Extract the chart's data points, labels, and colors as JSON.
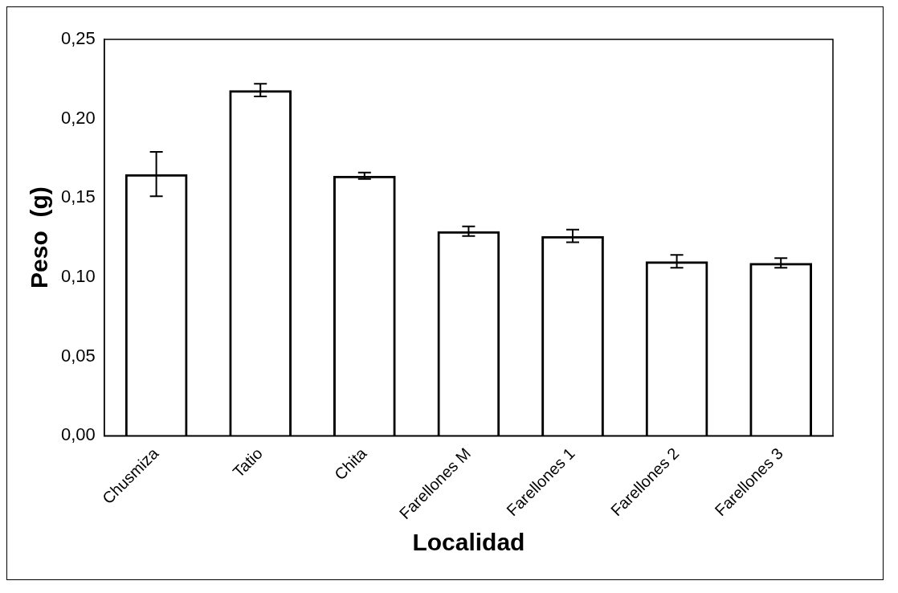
{
  "chart_data": {
    "type": "bar",
    "xlabel": "Localidad",
    "ylabel": "Peso  (g)",
    "categories": [
      "Chusmiza",
      "Tatio",
      "Chita",
      "Farellones M",
      "Farellones 1",
      "Farellones 2",
      "Farellones 3"
    ],
    "values": [
      0.165,
      0.218,
      0.164,
      0.129,
      0.126,
      0.11,
      0.109
    ],
    "errors": [
      0.014,
      0.004,
      0.002,
      0.003,
      0.004,
      0.004,
      0.003
    ],
    "color": "#000000",
    "ylim": [
      0,
      0.25
    ],
    "yticks": [
      {
        "value": 0,
        "label": "0,00"
      },
      {
        "value": 0.05,
        "label": "0,05"
      },
      {
        "value": 0.1,
        "label": "0,10"
      },
      {
        "value": 0.15,
        "label": "0,15"
      },
      {
        "value": 0.2,
        "label": "0,20"
      },
      {
        "value": 0.25,
        "label": "0,25"
      }
    ],
    "grid": false,
    "legend": false
  }
}
